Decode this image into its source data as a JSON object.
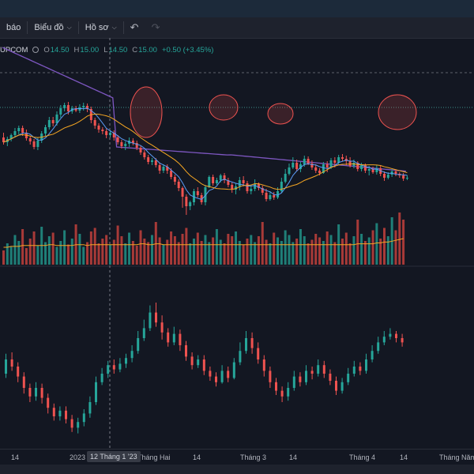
{
  "toolbar": {
    "cut_label": "báo",
    "chart_menu_label": "Biểu đồ",
    "profile_menu_label": "Hồ sơ",
    "undo_icon": "undo-icon",
    "redo_icon": "redo-icon"
  },
  "legend": {
    "symbol": "UPCOM",
    "open_key": "O",
    "open_value": "14.50",
    "high_key": "H",
    "high_value": "15.00",
    "low_key": "L",
    "low_value": "14.50",
    "close_key": "C",
    "close_value": "15.00",
    "change": "+0.50 (+3.45%)"
  },
  "colors": {
    "up": "#26a69a",
    "down": "#ef5350",
    "ma_fast": "#5b9cf6",
    "ma_slow": "#f5a623",
    "ma_long": "#7e57c2"
  },
  "time_axis": {
    "ticks": [
      "14",
      "2023",
      "Tháng Hai",
      "14",
      "Tháng 3",
      "14",
      "Tháng 4",
      "14",
      "Tháng Năm"
    ],
    "crosshair_label": "12 Tháng 1 '23"
  },
  "chart_data": {
    "type": "candlestick",
    "price_candles": [
      [
        218,
        212,
        224,
        209
      ],
      [
        212,
        216,
        219,
        207
      ],
      [
        216,
        221,
        223,
        213
      ],
      [
        221,
        226,
        230,
        218
      ],
      [
        226,
        230,
        233,
        222
      ],
      [
        230,
        224,
        233,
        220
      ],
      [
        224,
        217,
        228,
        214
      ],
      [
        217,
        213,
        220,
        209
      ],
      [
        213,
        206,
        216,
        203
      ],
      [
        206,
        214,
        218,
        202
      ],
      [
        214,
        223,
        226,
        211
      ],
      [
        223,
        231,
        234,
        220
      ],
      [
        231,
        240,
        244,
        228
      ],
      [
        240,
        236,
        244,
        232
      ],
      [
        236,
        247,
        251,
        233
      ],
      [
        247,
        255,
        259,
        243
      ],
      [
        255,
        259,
        262,
        251
      ],
      [
        259,
        251,
        263,
        247
      ],
      [
        251,
        255,
        258,
        248
      ],
      [
        255,
        252,
        258,
        250
      ],
      [
        252,
        256,
        260,
        249
      ],
      [
        256,
        258,
        262,
        252
      ],
      [
        258,
        254,
        261,
        250
      ],
      [
        254,
        240,
        257,
        236
      ],
      [
        240,
        233,
        243,
        229
      ],
      [
        233,
        228,
        236,
        224
      ],
      [
        228,
        226,
        231,
        222
      ],
      [
        226,
        221,
        229,
        217
      ],
      [
        221,
        224,
        227,
        218
      ],
      [
        224,
        218,
        227,
        214
      ],
      [
        218,
        212,
        221,
        209
      ],
      [
        212,
        207,
        215,
        204
      ],
      [
        207,
        210,
        213,
        202
      ],
      [
        210,
        214,
        218,
        206
      ],
      [
        214,
        211,
        217,
        208
      ],
      [
        211,
        205,
        214,
        202
      ],
      [
        205,
        199,
        208,
        196
      ],
      [
        199,
        193,
        202,
        190
      ],
      [
        193,
        187,
        196,
        184
      ],
      [
        187,
        189,
        192,
        183
      ],
      [
        189,
        183,
        192,
        180
      ],
      [
        183,
        176,
        186,
        172
      ],
      [
        176,
        181,
        184,
        173
      ],
      [
        181,
        176,
        184,
        172
      ],
      [
        176,
        168,
        179,
        165
      ],
      [
        168,
        162,
        171,
        158
      ],
      [
        162,
        154,
        165,
        150
      ],
      [
        154,
        143,
        156,
        129
      ],
      [
        143,
        131,
        146,
        120
      ],
      [
        131,
        136,
        138,
        126
      ],
      [
        136,
        150,
        153,
        132
      ],
      [
        150,
        145,
        155,
        142
      ],
      [
        145,
        136,
        148,
        133
      ],
      [
        136,
        155,
        158,
        132
      ],
      [
        155,
        168,
        170,
        154
      ],
      [
        168,
        160,
        171,
        157
      ],
      [
        160,
        164,
        167,
        158
      ],
      [
        164,
        170,
        172,
        161
      ],
      [
        170,
        164,
        173,
        160
      ],
      [
        164,
        158,
        167,
        155
      ],
      [
        158,
        152,
        161,
        148
      ],
      [
        152,
        156,
        160,
        146
      ],
      [
        156,
        164,
        168,
        151
      ],
      [
        164,
        160,
        169,
        156
      ],
      [
        160,
        150,
        163,
        147
      ],
      [
        150,
        153,
        158,
        146
      ],
      [
        153,
        159,
        165,
        150
      ],
      [
        159,
        154,
        161,
        151
      ],
      [
        154,
        148,
        157,
        145
      ],
      [
        148,
        140,
        153,
        137
      ],
      [
        140,
        145,
        150,
        138
      ],
      [
        145,
        142,
        149,
        139
      ],
      [
        142,
        150,
        155,
        140
      ],
      [
        150,
        162,
        167,
        148
      ],
      [
        162,
        172,
        178,
        160
      ],
      [
        172,
        180,
        185,
        170
      ],
      [
        180,
        186,
        193,
        178
      ],
      [
        186,
        178,
        190,
        175
      ],
      [
        178,
        184,
        187,
        174
      ],
      [
        184,
        191,
        195,
        181
      ],
      [
        191,
        185,
        194,
        183
      ],
      [
        185,
        180,
        189,
        177
      ],
      [
        180,
        176,
        184,
        173
      ],
      [
        176,
        173,
        179,
        170
      ],
      [
        173,
        184,
        187,
        172
      ],
      [
        184,
        180,
        188,
        174
      ],
      [
        180,
        189,
        192,
        178
      ],
      [
        189,
        186,
        193,
        180
      ],
      [
        186,
        193,
        196,
        183
      ],
      [
        193,
        191,
        197,
        188
      ],
      [
        191,
        188,
        195,
        183
      ],
      [
        188,
        182,
        193,
        180
      ],
      [
        182,
        186,
        190,
        179
      ],
      [
        186,
        178,
        188,
        175
      ],
      [
        178,
        183,
        186,
        175
      ],
      [
        183,
        176,
        185,
        173
      ],
      [
        176,
        178,
        182,
        170
      ],
      [
        178,
        174,
        181,
        172
      ],
      [
        174,
        179,
        183,
        171
      ],
      [
        179,
        172,
        182,
        169
      ],
      [
        172,
        167,
        175,
        163
      ],
      [
        167,
        171,
        174,
        165
      ],
      [
        171,
        175,
        178,
        168
      ],
      [
        175,
        172,
        177,
        169
      ],
      [
        172,
        170,
        174,
        167
      ],
      [
        170,
        166,
        173,
        163
      ],
      [
        166,
        167,
        170,
        164
      ]
    ],
    "volume": [
      12,
      18,
      15,
      25,
      20,
      30,
      14,
      22,
      28,
      16,
      32,
      19,
      24,
      27,
      15,
      20,
      29,
      17,
      22,
      34,
      26,
      15,
      19,
      28,
      31,
      18,
      22,
      25,
      17,
      21,
      33,
      24,
      18,
      27,
      20,
      16,
      29,
      22,
      19,
      25,
      36,
      23,
      17,
      21,
      28,
      24,
      19,
      26,
      31,
      18,
      22,
      27,
      20,
      25,
      19,
      23,
      30,
      21,
      18,
      26,
      24,
      28,
      20,
      17,
      22,
      25,
      19,
      24,
      36,
      21,
      18,
      27,
      23,
      20,
      29,
      25,
      19,
      22,
      30,
      24,
      18,
      21,
      26,
      23,
      20,
      28,
      25,
      19,
      34,
      22,
      27,
      18,
      24,
      38,
      26,
      20,
      23,
      29,
      35,
      22,
      31,
      24,
      40,
      29,
      44,
      38
    ],
    "volume_ma": [
      20,
      20,
      21,
      21,
      21,
      22,
      22,
      22,
      22,
      22,
      22,
      22,
      23,
      23,
      22,
      22,
      22,
      22,
      22,
      23,
      23,
      23,
      22,
      23,
      23,
      23,
      23,
      23,
      23,
      23,
      23,
      23,
      23,
      23,
      23,
      23,
      24,
      24,
      23,
      23,
      24,
      24,
      23,
      23,
      23,
      23,
      23,
      23,
      23,
      23,
      23,
      23,
      23,
      23,
      23,
      23,
      23,
      23,
      23,
      23,
      23,
      23,
      23,
      23,
      23,
      23,
      23,
      23,
      23,
      23,
      23,
      23,
      23,
      23,
      23,
      23,
      23,
      23,
      23,
      23,
      23,
      23,
      23,
      23,
      23,
      23,
      23,
      23,
      23,
      23,
      23,
      23,
      23,
      24,
      24,
      24,
      24,
      24,
      25,
      25,
      26,
      26,
      27,
      28,
      29,
      30
    ],
    "lower_candles": [
      [
        50,
        60,
        64,
        47
      ],
      [
        60,
        55,
        65,
        52
      ],
      [
        55,
        48,
        58,
        44
      ],
      [
        48,
        40,
        51,
        36
      ],
      [
        40,
        34,
        43,
        30
      ],
      [
        34,
        40,
        44,
        31
      ],
      [
        40,
        33,
        43,
        29
      ],
      [
        33,
        26,
        36,
        22
      ],
      [
        26,
        20,
        29,
        17
      ],
      [
        20,
        24,
        27,
        17
      ],
      [
        24,
        18,
        27,
        15
      ],
      [
        18,
        12,
        21,
        9
      ],
      [
        12,
        16,
        19,
        8
      ],
      [
        16,
        22,
        25,
        13
      ],
      [
        22,
        30,
        34,
        19
      ],
      [
        30,
        44,
        48,
        28
      ],
      [
        44,
        50,
        54,
        42
      ],
      [
        50,
        56,
        59,
        47
      ],
      [
        56,
        53,
        60,
        50
      ],
      [
        53,
        57,
        61,
        51
      ],
      [
        57,
        61,
        64,
        54
      ],
      [
        61,
        66,
        70,
        58
      ],
      [
        66,
        75,
        80,
        64
      ],
      [
        75,
        82,
        88,
        73
      ],
      [
        82,
        93,
        98,
        80
      ],
      [
        93,
        86,
        100,
        83
      ],
      [
        86,
        79,
        91,
        74
      ],
      [
        79,
        72,
        82,
        69
      ],
      [
        72,
        78,
        83,
        70
      ],
      [
        78,
        70,
        81,
        66
      ],
      [
        70,
        62,
        73,
        59
      ],
      [
        62,
        56,
        65,
        53
      ],
      [
        56,
        60,
        63,
        54
      ],
      [
        60,
        52,
        63,
        49
      ],
      [
        52,
        48,
        55,
        45
      ],
      [
        48,
        44,
        51,
        41
      ],
      [
        44,
        52,
        56,
        43
      ],
      [
        52,
        47,
        55,
        44
      ],
      [
        47,
        58,
        61,
        46
      ],
      [
        58,
        66,
        72,
        56
      ],
      [
        66,
        75,
        80,
        64
      ],
      [
        75,
        68,
        79,
        64
      ],
      [
        68,
        60,
        72,
        57
      ],
      [
        60,
        52,
        63,
        48
      ],
      [
        52,
        44,
        55,
        40
      ],
      [
        44,
        38,
        47,
        35
      ],
      [
        38,
        34,
        41,
        30
      ],
      [
        34,
        40,
        44,
        31
      ],
      [
        40,
        48,
        52,
        38
      ],
      [
        48,
        44,
        51,
        41
      ],
      [
        44,
        52,
        56,
        42
      ],
      [
        52,
        50,
        55,
        46
      ],
      [
        50,
        56,
        60,
        48
      ],
      [
        56,
        50,
        59,
        47
      ],
      [
        50,
        45,
        53,
        42
      ],
      [
        45,
        38,
        48,
        35
      ],
      [
        38,
        44,
        47,
        36
      ],
      [
        44,
        50,
        54,
        42
      ],
      [
        50,
        55,
        59,
        48
      ],
      [
        55,
        52,
        58,
        49
      ],
      [
        52,
        60,
        64,
        50
      ],
      [
        60,
        66,
        70,
        58
      ],
      [
        66,
        72,
        76,
        64
      ],
      [
        72,
        76,
        80,
        70
      ],
      [
        76,
        78,
        82,
        74
      ],
      [
        78,
        75,
        80,
        72
      ],
      [
        75,
        72,
        78,
        69
      ]
    ]
  }
}
